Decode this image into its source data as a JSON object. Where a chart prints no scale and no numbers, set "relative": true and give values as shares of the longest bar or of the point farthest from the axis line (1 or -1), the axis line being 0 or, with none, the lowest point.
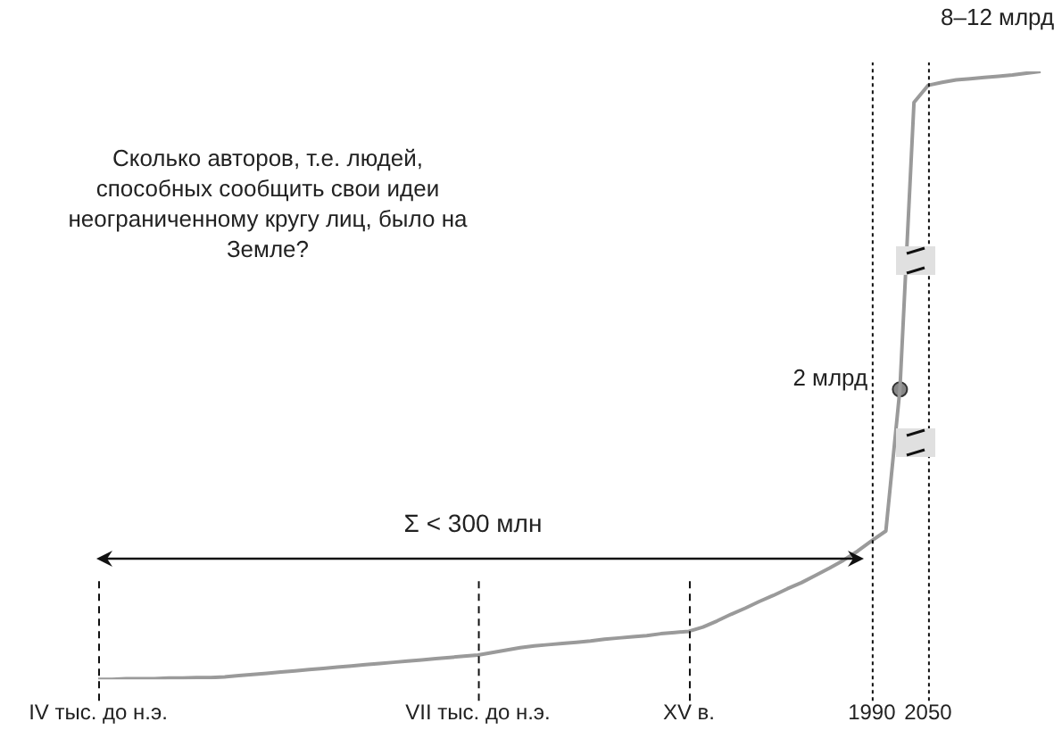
{
  "chart_data": {
    "type": "line",
    "relative": true,
    "categories": [
      "IV тыс. до н.э.",
      null,
      null,
      null,
      null,
      null,
      null,
      null,
      null,
      null,
      null,
      null,
      null,
      null,
      null,
      null,
      null,
      null,
      null,
      null,
      null,
      null,
      null,
      null,
      null,
      null,
      null,
      "VII тыс. до н.э.",
      null,
      null,
      null,
      null,
      null,
      null,
      null,
      null,
      null,
      null,
      null,
      null,
      null,
      null,
      "XV в.",
      null,
      null,
      null,
      null,
      null,
      null,
      null,
      null,
      null,
      null,
      null,
      null,
      "1990",
      null,
      null,
      null,
      "2050",
      null,
      null,
      null,
      null,
      null,
      null,
      null,
      null
    ],
    "series": [
      {
        "color": "#9a9a9a",
        "values": [
          0,
          0,
          0.001,
          0.001,
          0.001,
          0.002,
          0.002,
          0.003,
          0.003,
          0.004,
          0.006,
          0.008,
          0.01,
          0.012,
          0.014,
          0.016,
          0.018,
          0.02,
          0.022,
          0.024,
          0.026,
          0.028,
          0.03,
          0.032,
          0.034,
          0.036,
          0.038,
          0.04,
          0.044,
          0.048,
          0.052,
          0.055,
          0.057,
          0.059,
          0.061,
          0.063,
          0.066,
          0.068,
          0.07,
          0.072,
          0.075,
          0.077,
          0.079,
          0.086,
          0.096,
          0.107,
          0.117,
          0.128,
          0.138,
          0.149,
          0.159,
          0.171,
          0.183,
          0.196,
          0.211,
          0.228,
          0.244,
          0.477,
          0.949,
          0.977,
          0.982,
          0.986,
          0.988,
          0.99,
          0.992,
          0.994,
          0.997,
          1
        ]
      },
      {
        "type": "scatter",
        "color": "#888888",
        "marker": "circle",
        "values": [
          null,
          null,
          null,
          null,
          null,
          null,
          null,
          null,
          null,
          null,
          null,
          null,
          null,
          null,
          null,
          null,
          null,
          null,
          null,
          null,
          null,
          null,
          null,
          null,
          null,
          null,
          null,
          null,
          null,
          null,
          null,
          null,
          null,
          null,
          null,
          null,
          null,
          null,
          null,
          null,
          null,
          null,
          null,
          null,
          null,
          null,
          null,
          null,
          null,
          null,
          null,
          null,
          null,
          null,
          null,
          null,
          null,
          0.477,
          null,
          null,
          null,
          null,
          null,
          null,
          null,
          null,
          null,
          null
        ]
      }
    ],
    "ref_lines": [
      {
        "axis": "x",
        "value": "IV тыс. до н.э.",
        "line_style": "dashed"
      },
      {
        "axis": "x",
        "value": "VII тыс. до н.э.",
        "line_style": "dashed"
      },
      {
        "axis": "x",
        "value": "XV в.",
        "line_style": "dashed"
      },
      {
        "axis": "x",
        "value": "1990",
        "line_style": "dotted"
      },
      {
        "axis": "x",
        "value": "2050",
        "line_style": "dotted"
      }
    ],
    "annotations": [
      "Сколько авторов, т.е. людей, способных сообщить свои идеи неограниченному кругу лиц, было на Земле?",
      "Σ < 300 млн",
      "2 млрд",
      "8–12 млрд"
    ],
    "grid": false,
    "legend": false,
    "marker": "none",
    "line_style": "solid"
  }
}
